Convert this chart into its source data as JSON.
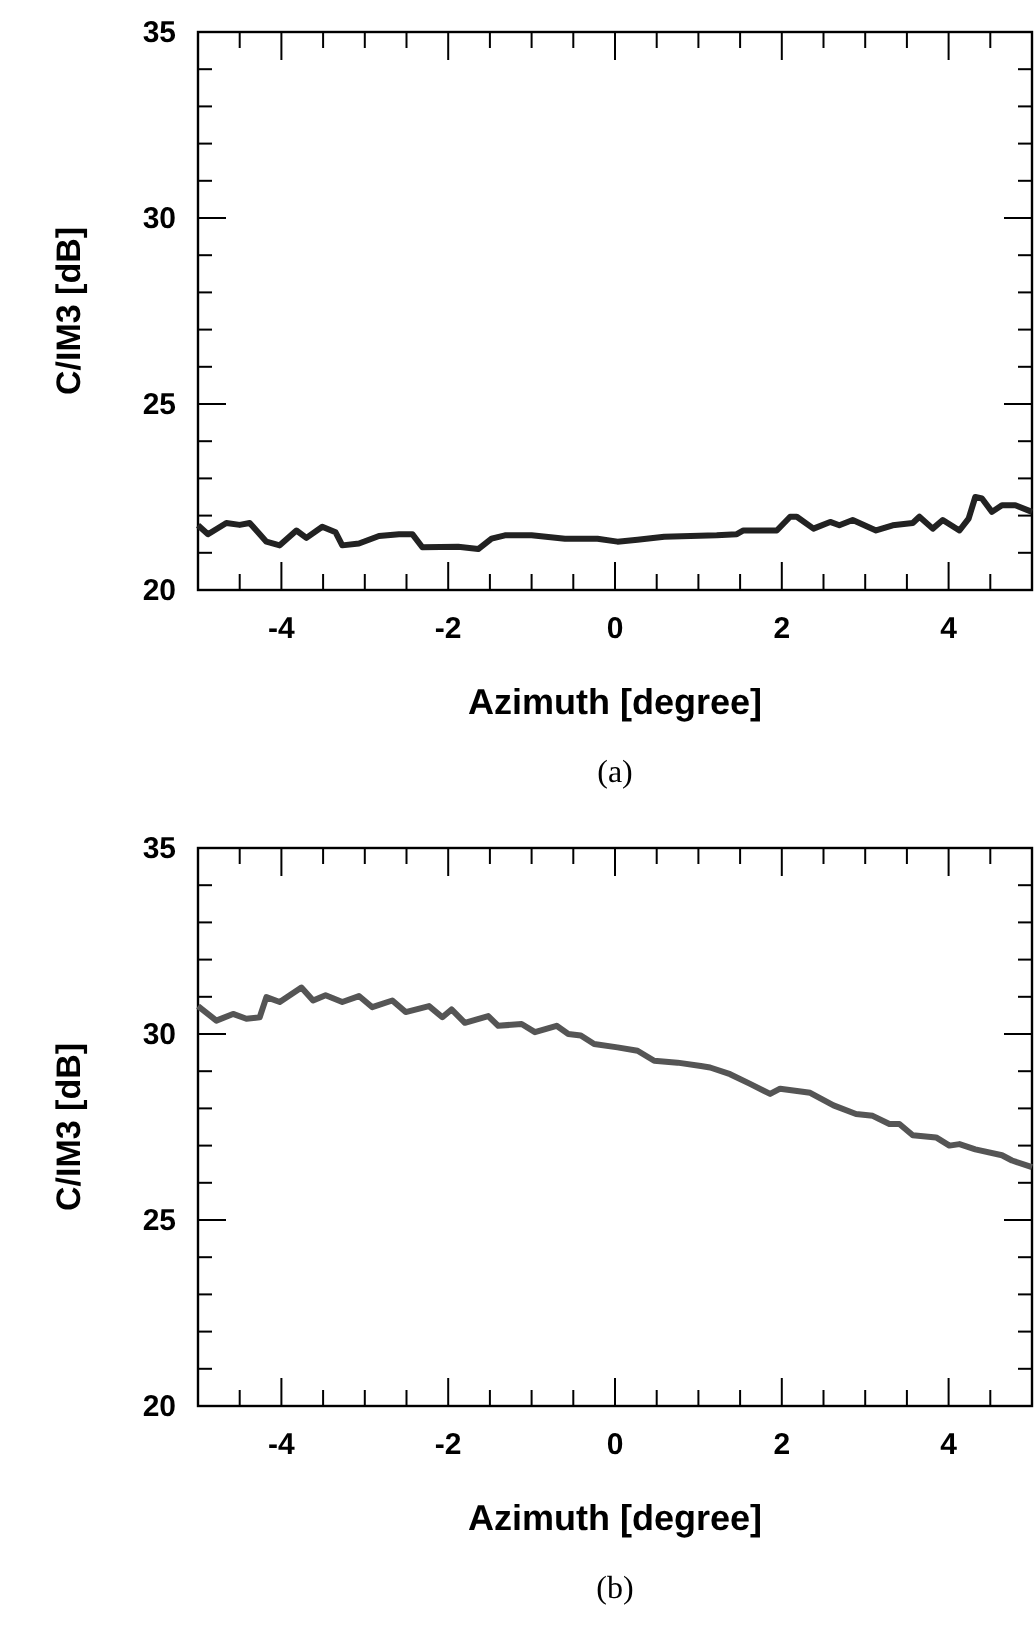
{
  "chart_data": [
    {
      "type": "line",
      "title": "(a)",
      "xlabel": "Azimuth [degree]",
      "ylabel": "C/IM3 [dB]",
      "xlim": [
        -5,
        5
      ],
      "ylim": [
        20,
        35
      ],
      "xticks": [
        {
          "value": -4.5,
          "label": null
        },
        -4,
        {
          "value": -3.5,
          "label": null
        },
        {
          "value": -3,
          "label": null
        },
        {
          "value": -2.5,
          "label": null
        },
        -2,
        {
          "value": -1.5,
          "label": null
        },
        {
          "value": -1,
          "label": null
        },
        {
          "value": -0.5,
          "label": null
        },
        0,
        {
          "value": 0.5,
          "label": null
        },
        {
          "value": 1,
          "label": null
        },
        {
          "value": 1.5,
          "label": null
        },
        2,
        {
          "value": 2.5,
          "label": null
        },
        {
          "value": 3,
          "label": null
        },
        {
          "value": 3.5,
          "label": null
        },
        4,
        {
          "value": 4.5,
          "label": null
        }
      ],
      "yticks": [
        20,
        {
          "value": 21,
          "label": null
        },
        {
          "value": 22,
          "label": null
        },
        {
          "value": 23,
          "label": null
        },
        {
          "value": 24,
          "label": null
        },
        25,
        {
          "value": 26,
          "label": null
        },
        {
          "value": 27,
          "label": null
        },
        {
          "value": 28,
          "label": null
        },
        {
          "value": 29,
          "label": null
        },
        30,
        {
          "value": 31,
          "label": null
        },
        {
          "value": 32,
          "label": null
        },
        {
          "value": 33,
          "label": null
        },
        {
          "value": 34,
          "label": null
        },
        35
      ],
      "grid": false,
      "marker": "none",
      "line_style": "solid",
      "series": [
        {
          "color": "#222222",
          "x": [
            -5,
            -4.88,
            -4.66,
            -4.5,
            -4.38,
            -4.18,
            -4.02,
            -3.82,
            -3.7,
            -3.51,
            -3.35,
            -3.27,
            -3.07,
            -2.83,
            -2.59,
            -2.43,
            -2.31,
            -1.88,
            -1.64,
            -1.48,
            -1.32,
            -1,
            -0.6,
            -0.21,
            0.03,
            0.27,
            0.59,
            1.22,
            1.46,
            1.54,
            1.94,
            2.1,
            2.18,
            2.38,
            2.58,
            2.69,
            2.85,
            3.13,
            3.33,
            3.57,
            3.65,
            3.81,
            3.93,
            4.13,
            4.24,
            4.32,
            4.4,
            4.52,
            4.64,
            4.8,
            5
          ],
          "values": [
            21.74,
            21.5,
            21.8,
            21.75,
            21.8,
            21.3,
            21.2,
            21.6,
            21.4,
            21.7,
            21.55,
            21.2,
            21.25,
            21.45,
            21.5,
            21.5,
            21.15,
            21.16,
            21.1,
            21.38,
            21.47,
            21.47,
            21.38,
            21.38,
            21.3,
            21.35,
            21.43,
            21.47,
            21.5,
            21.6,
            21.6,
            21.97,
            21.97,
            21.65,
            21.83,
            21.74,
            21.88,
            21.6,
            21.74,
            21.8,
            21.97,
            21.65,
            21.88,
            21.6,
            21.92,
            22.5,
            22.46,
            22.1,
            22.28,
            22.28,
            22.1
          ]
        }
      ]
    },
    {
      "type": "line",
      "title": "(b)",
      "xlabel": "Azimuth [degree]",
      "ylabel": "C/IM3 [dB]",
      "xlim": [
        -5,
        5
      ],
      "ylim": [
        20,
        35
      ],
      "xticks": [
        {
          "value": -4.5,
          "label": null
        },
        -4,
        {
          "value": -3.5,
          "label": null
        },
        {
          "value": -3,
          "label": null
        },
        {
          "value": -2.5,
          "label": null
        },
        -2,
        {
          "value": -1.5,
          "label": null
        },
        {
          "value": -1,
          "label": null
        },
        {
          "value": -0.5,
          "label": null
        },
        0,
        {
          "value": 0.5,
          "label": null
        },
        {
          "value": 1,
          "label": null
        },
        {
          "value": 1.5,
          "label": null
        },
        2,
        {
          "value": 2.5,
          "label": null
        },
        {
          "value": 3,
          "label": null
        },
        {
          "value": 3.5,
          "label": null
        },
        4,
        {
          "value": 4.5,
          "label": null
        }
      ],
      "yticks": [
        20,
        {
          "value": 21,
          "label": null
        },
        {
          "value": 22,
          "label": null
        },
        {
          "value": 23,
          "label": null
        },
        {
          "value": 24,
          "label": null
        },
        25,
        {
          "value": 26,
          "label": null
        },
        {
          "value": 27,
          "label": null
        },
        {
          "value": 28,
          "label": null
        },
        {
          "value": 29,
          "label": null
        },
        30,
        {
          "value": 31,
          "label": null
        },
        {
          "value": 32,
          "label": null
        },
        {
          "value": 33,
          "label": null
        },
        {
          "value": 34,
          "label": null
        },
        35
      ],
      "grid": false,
      "marker": "none",
      "line_style": "solid",
      "series": [
        {
          "color": "#555555",
          "x": [
            -5,
            -4.78,
            -4.58,
            -4.42,
            -4.26,
            -4.18,
            -4.02,
            -3.76,
            -3.62,
            -3.47,
            -3.27,
            -3.07,
            -2.91,
            -2.67,
            -2.51,
            -2.23,
            -2.07,
            -1.96,
            -1.8,
            -1.52,
            -1.4,
            -1.12,
            -0.96,
            -0.7,
            -0.56,
            -0.41,
            -0.25,
            0.03,
            0.27,
            0.47,
            0.75,
            1.03,
            1.14,
            1.38,
            1.62,
            1.86,
            1.98,
            2.34,
            2.62,
            2.89,
            3.09,
            3.29,
            3.41,
            3.57,
            3.85,
            4.01,
            4.13,
            4.32,
            4.64,
            4.76,
            5
          ],
          "values": [
            30.75,
            30.36,
            30.54,
            30.41,
            30.45,
            30.99,
            30.86,
            31.25,
            30.9,
            31.04,
            30.86,
            31.02,
            30.72,
            30.9,
            30.59,
            30.75,
            30.45,
            30.66,
            30.3,
            30.48,
            30.22,
            30.27,
            30.05,
            30.22,
            30,
            29.96,
            29.73,
            29.64,
            29.55,
            29.28,
            29.23,
            29.14,
            29.1,
            28.92,
            28.66,
            28.39,
            28.53,
            28.42,
            28.08,
            27.85,
            27.8,
            27.58,
            27.58,
            27.28,
            27.22,
            27,
            27.04,
            26.9,
            26.74,
            26.6,
            26.42
          ]
        }
      ]
    }
  ]
}
